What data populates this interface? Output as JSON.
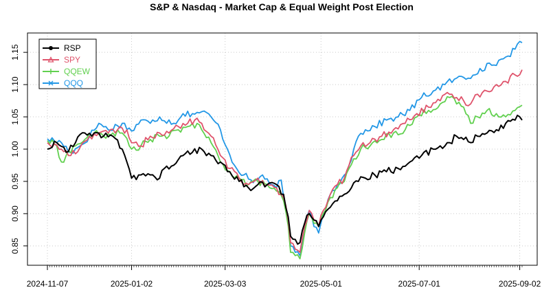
{
  "chart_data": {
    "type": "line",
    "title": "S&P & Nasdaq - Market Cap & Equal Weight Post Election",
    "xlabel": "",
    "ylabel": "",
    "ylim": [
      0.82,
      1.18
    ],
    "yticks": [
      "0.85",
      "0.90",
      "0.95",
      "1.00",
      "1.05",
      "1.10",
      "1.15"
    ],
    "yticks_values": [
      0.85,
      0.9,
      0.95,
      1.0,
      1.05,
      1.1,
      1.15
    ],
    "n_points": 204,
    "xticks": [
      {
        "label": "2024-11-07",
        "index": 0
      },
      {
        "label": "2025-01-02",
        "index": 36
      },
      {
        "label": "2025-03-03",
        "index": 76
      },
      {
        "label": "2025-05-01",
        "index": 117
      },
      {
        "label": "2025-07-01",
        "index": 159
      },
      {
        "label": "2025-09-02",
        "index": 202
      }
    ],
    "grid": true,
    "legend_position": "top-left",
    "series": [
      {
        "name": "QQQ",
        "color": "#2297E6",
        "marker": "x",
        "anchors": [
          [
            0,
            1.016
          ],
          [
            6,
            1.01
          ],
          [
            10,
            0.995
          ],
          [
            14,
            1.005
          ],
          [
            18,
            1.02
          ],
          [
            22,
            1.04
          ],
          [
            26,
            1.03
          ],
          [
            32,
            1.04
          ],
          [
            36,
            1.028
          ],
          [
            40,
            1.045
          ],
          [
            44,
            1.04
          ],
          [
            48,
            1.05
          ],
          [
            54,
            1.04
          ],
          [
            58,
            1.055
          ],
          [
            62,
            1.055
          ],
          [
            66,
            1.058
          ],
          [
            70,
            1.05
          ],
          [
            74,
            1.03
          ],
          [
            77,
            1.0
          ],
          [
            80,
            0.975
          ],
          [
            84,
            0.96
          ],
          [
            88,
            0.948
          ],
          [
            92,
            0.96
          ],
          [
            96,
            0.945
          ],
          [
            98,
            0.94
          ],
          [
            100,
            0.952
          ],
          [
            101,
            0.925
          ],
          [
            103,
            0.89
          ],
          [
            104,
            0.85
          ],
          [
            106,
            0.84
          ],
          [
            108,
            0.835
          ],
          [
            110,
            0.875
          ],
          [
            112,
            0.905
          ],
          [
            114,
            0.88
          ],
          [
            116,
            0.87
          ],
          [
            118,
            0.9
          ],
          [
            121,
            0.93
          ],
          [
            124,
            0.945
          ],
          [
            127,
            0.96
          ],
          [
            129,
            0.975
          ],
          [
            131,
            1.0
          ],
          [
            133,
            1.02
          ],
          [
            136,
            1.03
          ],
          [
            140,
            1.035
          ],
          [
            145,
            1.045
          ],
          [
            150,
            1.05
          ],
          [
            155,
            1.06
          ],
          [
            160,
            1.08
          ],
          [
            165,
            1.09
          ],
          [
            170,
            1.1
          ],
          [
            175,
            1.11
          ],
          [
            180,
            1.11
          ],
          [
            185,
            1.125
          ],
          [
            190,
            1.13
          ],
          [
            195,
            1.14
          ],
          [
            200,
            1.155
          ],
          [
            203,
            1.165
          ]
        ]
      },
      {
        "name": "QQEW",
        "color": "#61D04F",
        "marker": "+",
        "anchors": [
          [
            0,
            1.013
          ],
          [
            4,
            1.005
          ],
          [
            6,
            0.98
          ],
          [
            8,
            0.99
          ],
          [
            12,
            1.005
          ],
          [
            16,
            1.015
          ],
          [
            20,
            1.025
          ],
          [
            24,
            1.02
          ],
          [
            28,
            1.025
          ],
          [
            32,
            1.025
          ],
          [
            36,
            1.0
          ],
          [
            40,
            1.005
          ],
          [
            44,
            1.015
          ],
          [
            48,
            1.02
          ],
          [
            52,
            1.02
          ],
          [
            56,
            1.03
          ],
          [
            60,
            1.035
          ],
          [
            62,
            1.04
          ],
          [
            66,
            1.03
          ],
          [
            70,
            1.01
          ],
          [
            74,
            0.98
          ],
          [
            78,
            0.965
          ],
          [
            82,
            0.955
          ],
          [
            86,
            0.945
          ],
          [
            90,
            0.95
          ],
          [
            94,
            0.945
          ],
          [
            98,
            0.935
          ],
          [
            101,
            0.92
          ],
          [
            103,
            0.88
          ],
          [
            104,
            0.84
          ],
          [
            106,
            0.835
          ],
          [
            108,
            0.83
          ],
          [
            110,
            0.87
          ],
          [
            112,
            0.9
          ],
          [
            114,
            0.885
          ],
          [
            116,
            0.88
          ],
          [
            118,
            0.9
          ],
          [
            121,
            0.925
          ],
          [
            124,
            0.94
          ],
          [
            127,
            0.95
          ],
          [
            129,
            0.97
          ],
          [
            131,
            0.985
          ],
          [
            134,
            1.0
          ],
          [
            138,
            1.005
          ],
          [
            143,
            1.015
          ],
          [
            148,
            1.025
          ],
          [
            153,
            1.03
          ],
          [
            158,
            1.05
          ],
          [
            163,
            1.06
          ],
          [
            168,
            1.07
          ],
          [
            172,
            1.08
          ],
          [
            175,
            1.07
          ],
          [
            178,
            1.065
          ],
          [
            181,
            1.04
          ],
          [
            184,
            1.05
          ],
          [
            188,
            1.06
          ],
          [
            192,
            1.055
          ],
          [
            196,
            1.05
          ],
          [
            200,
            1.06
          ],
          [
            203,
            1.068
          ]
        ]
      },
      {
        "name": "SPY",
        "color": "#DF536B",
        "marker": "triangle",
        "anchors": [
          [
            0,
            1.01
          ],
          [
            6,
            1.0
          ],
          [
            10,
            0.99
          ],
          [
            14,
            1.003
          ],
          [
            18,
            1.02
          ],
          [
            22,
            1.025
          ],
          [
            26,
            1.025
          ],
          [
            30,
            1.03
          ],
          [
            34,
            1.03
          ],
          [
            36,
            1.01
          ],
          [
            40,
            1.005
          ],
          [
            44,
            1.02
          ],
          [
            48,
            1.025
          ],
          [
            52,
            1.025
          ],
          [
            56,
            1.035
          ],
          [
            60,
            1.04
          ],
          [
            63,
            1.045
          ],
          [
            66,
            1.04
          ],
          [
            70,
            1.02
          ],
          [
            74,
            0.99
          ],
          [
            78,
            0.97
          ],
          [
            82,
            0.955
          ],
          [
            86,
            0.945
          ],
          [
            90,
            0.955
          ],
          [
            94,
            0.945
          ],
          [
            98,
            0.94
          ],
          [
            101,
            0.925
          ],
          [
            103,
            0.89
          ],
          [
            104,
            0.855
          ],
          [
            106,
            0.845
          ],
          [
            108,
            0.84
          ],
          [
            110,
            0.88
          ],
          [
            112,
            0.905
          ],
          [
            114,
            0.89
          ],
          [
            116,
            0.88
          ],
          [
            118,
            0.905
          ],
          [
            121,
            0.93
          ],
          [
            124,
            0.945
          ],
          [
            127,
            0.955
          ],
          [
            129,
            0.975
          ],
          [
            131,
            0.99
          ],
          [
            134,
            1.005
          ],
          [
            138,
            1.01
          ],
          [
            143,
            1.02
          ],
          [
            148,
            1.03
          ],
          [
            153,
            1.04
          ],
          [
            158,
            1.055
          ],
          [
            163,
            1.065
          ],
          [
            168,
            1.075
          ],
          [
            172,
            1.085
          ],
          [
            175,
            1.08
          ],
          [
            178,
            1.075
          ],
          [
            181,
            1.07
          ],
          [
            184,
            1.085
          ],
          [
            188,
            1.09
          ],
          [
            192,
            1.1
          ],
          [
            196,
            1.105
          ],
          [
            200,
            1.115
          ],
          [
            203,
            1.123
          ]
        ]
      },
      {
        "name": "RSP",
        "color": "#000000",
        "marker": "circle",
        "anchors": [
          [
            0,
            1.0
          ],
          [
            4,
            1.01
          ],
          [
            8,
            0.995
          ],
          [
            12,
            1.01
          ],
          [
            16,
            1.025
          ],
          [
            20,
            1.025
          ],
          [
            24,
            1.02
          ],
          [
            28,
            1.02
          ],
          [
            32,
            1.0
          ],
          [
            34,
            0.98
          ],
          [
            36,
            0.955
          ],
          [
            40,
            0.96
          ],
          [
            44,
            0.96
          ],
          [
            48,
            0.955
          ],
          [
            50,
            0.97
          ],
          [
            54,
            0.975
          ],
          [
            58,
            0.99
          ],
          [
            62,
            0.995
          ],
          [
            66,
            1.0
          ],
          [
            68,
            0.99
          ],
          [
            70,
            0.99
          ],
          [
            74,
            0.98
          ],
          [
            78,
            0.965
          ],
          [
            82,
            0.95
          ],
          [
            86,
            0.94
          ],
          [
            90,
            0.945
          ],
          [
            94,
            0.945
          ],
          [
            98,
            0.945
          ],
          [
            101,
            0.93
          ],
          [
            103,
            0.895
          ],
          [
            104,
            0.865
          ],
          [
            106,
            0.86
          ],
          [
            108,
            0.855
          ],
          [
            110,
            0.885
          ],
          [
            112,
            0.9
          ],
          [
            114,
            0.89
          ],
          [
            116,
            0.88
          ],
          [
            118,
            0.895
          ],
          [
            121,
            0.91
          ],
          [
            124,
            0.92
          ],
          [
            127,
            0.93
          ],
          [
            130,
            0.94
          ],
          [
            133,
            0.95
          ],
          [
            136,
            0.955
          ],
          [
            140,
            0.96
          ],
          [
            145,
            0.965
          ],
          [
            150,
            0.97
          ],
          [
            155,
            0.98
          ],
          [
            160,
            0.99
          ],
          [
            165,
            1.0
          ],
          [
            168,
            1.005
          ],
          [
            172,
            1.01
          ],
          [
            175,
            1.02
          ],
          [
            178,
            1.015
          ],
          [
            181,
            1.01
          ],
          [
            184,
            1.02
          ],
          [
            188,
            1.025
          ],
          [
            192,
            1.03
          ],
          [
            196,
            1.04
          ],
          [
            200,
            1.045
          ],
          [
            202,
            1.05
          ],
          [
            203,
            1.045
          ]
        ]
      }
    ]
  }
}
